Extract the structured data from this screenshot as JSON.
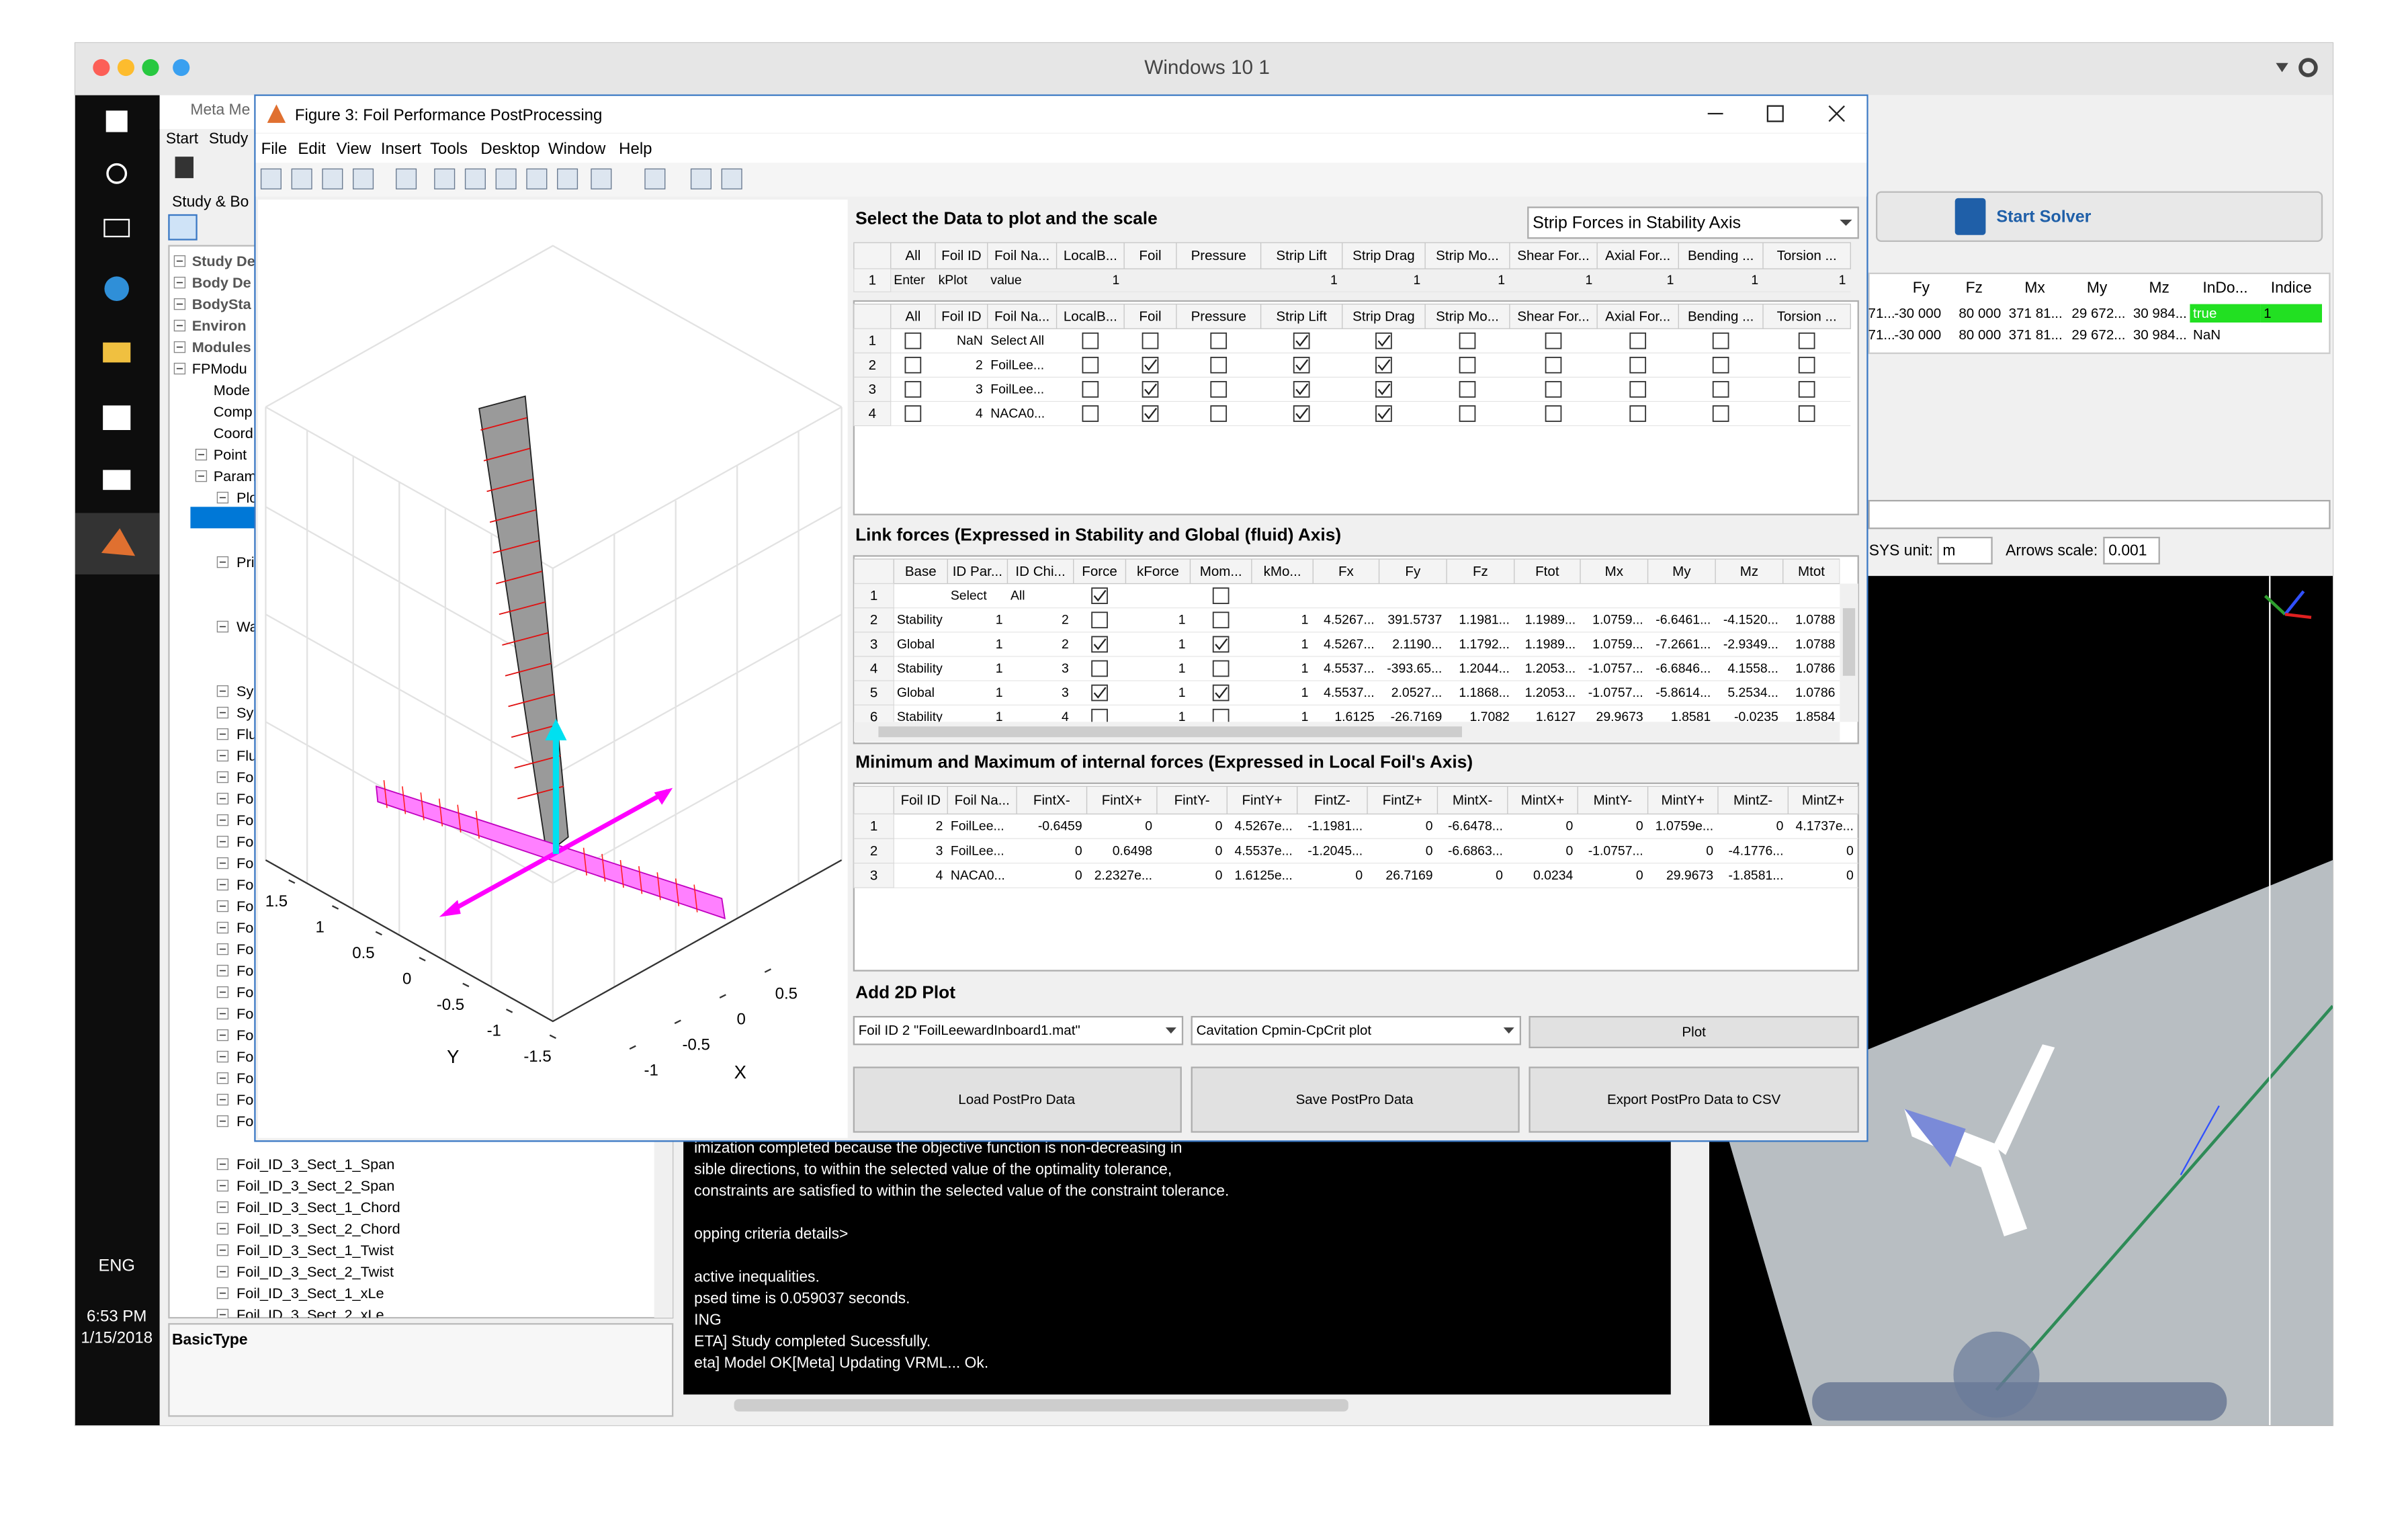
{
  "mac": {
    "title": "Windows 10 1"
  },
  "taskbar": {
    "language": "ENG",
    "time": "6:53 PM",
    "date": "1/15/2018"
  },
  "meta_app": {
    "title": "Meta Me",
    "menu": [
      "Start",
      "Study"
    ],
    "panel_title": "Study & Bo",
    "tree": [
      "Study De",
      "Body De",
      "BodySta",
      "Environ",
      "Modules",
      "FPModu",
      "Mode",
      "Comp",
      "Coord",
      "Point",
      "Param",
      "Plo",
      "Pri",
      "Wa",
      "Sy",
      "Sy",
      "Flu",
      "Flu",
      "Fo",
      "Fo",
      "Fo",
      "Fo",
      "Fo",
      "Fo",
      "Fo",
      "Fo",
      "Fo",
      "Fo",
      "Fo",
      "Fo",
      "Fo",
      "Fo",
      "Fo",
      "Fo",
      "Fo",
      "Foil_ID_3_Sect_1_Span",
      "Foil_ID_3_Sect_2_Span",
      "Foil_ID_3_Sect_1_Chord",
      "Foil_ID_3_Sect_2_Chord",
      "Foil_ID_3_Sect_1_Twist",
      "Foil_ID_3_Sect_2_Twist",
      "Foil_ID_3_Sect_1_xLe",
      "Foil_ID_3_Sect_2_xLe"
    ],
    "property_label": "BasicType",
    "console": [
      "imization completed because the objective function is non-decreasing in",
      "sible directions, to within the selected value of the optimality tolerance,",
      " constraints are satisfied to within the selected value of the constraint tolerance.",
      "opping criteria details>",
      "active inequalities.",
      "psed time is 0.059037 seconds.",
      "ING",
      "ETA] Study completed Sucessfully.",
      "eta] Model OK[Meta] Updating VRML... Ok."
    ],
    "solver_button": "Start Solver",
    "results_table": {
      "columns": [
        "Fy",
        "Fz",
        "Mx",
        "My",
        "Mz",
        "InDo...",
        "Indice"
      ],
      "rows": [
        [
          "71...",
          "-30 000",
          "80 000",
          "371 81...",
          "29 672...",
          "30 984...",
          "true",
          "1"
        ],
        [
          "71...",
          "-30 000",
          "80 000",
          "371 81...",
          "29 672...",
          "30 984...",
          "NaN",
          null
        ]
      ]
    },
    "sys_unit_label": "SYS unit:",
    "sys_unit": "m",
    "arrows_scale_label": "Arrows scale:",
    "arrows_scale": "0.001"
  },
  "figure": {
    "title": "Figure 3: Foil Performance PostProcessing",
    "menu": [
      "File",
      "Edit",
      "View",
      "Insert",
      "Tools",
      "Desktop",
      "Window",
      "Help"
    ],
    "plot3d": {
      "yticks": [
        1.5,
        1,
        0.5,
        0,
        -0.5,
        -1,
        -1.5
      ],
      "xticks": [
        0.5,
        0,
        -0.5,
        -1
      ],
      "ylabel": "Y",
      "xlabel": "X"
    },
    "select_title": "Select the Data to plot and the scale",
    "scale_dropdown": "Strip Forces in Stability Axis",
    "scale_table": {
      "columns": [
        "All",
        "Foil ID",
        "Foil Na...",
        "LocalB...",
        "Foil",
        "Pressure",
        "Strip Lift",
        "Strip Drag",
        "Strip Mo...",
        "Shear For...",
        "Axial For...",
        "Bending ...",
        "Torsion ..."
      ],
      "row_numbers": [
        1
      ],
      "rows": [
        [
          "Enter",
          "kPlot",
          "value",
          "1",
          null,
          null,
          "1",
          "1",
          "1",
          "1",
          "1",
          "1",
          "1"
        ]
      ]
    },
    "selection_table": {
      "columns": [
        "All",
        "Foil ID",
        "Foil Na...",
        "LocalB...",
        "Foil",
        "Pressure",
        "Strip Lift",
        "Strip Drag",
        "Strip Mo...",
        "Shear For...",
        "Axial For...",
        "Bending ...",
        "Torsion ..."
      ],
      "row_numbers": [
        1,
        2,
        3,
        4
      ],
      "rows": [
        [
          false,
          "NaN",
          "Select All",
          false,
          false,
          false,
          true,
          true,
          false,
          false,
          false,
          false,
          false
        ],
        [
          false,
          "2",
          "FoilLee...",
          false,
          true,
          false,
          true,
          true,
          false,
          false,
          false,
          false,
          false
        ],
        [
          false,
          "3",
          "FoilLee...",
          false,
          true,
          false,
          true,
          true,
          false,
          false,
          false,
          false,
          false
        ],
        [
          false,
          "4",
          "NACA0...",
          false,
          true,
          false,
          true,
          true,
          false,
          false,
          false,
          false,
          false
        ]
      ]
    },
    "link_title": "Link forces (Expressed in Stability and Global (fluid) Axis)",
    "link_table": {
      "columns": [
        "Base",
        "ID Par...",
        "ID Chi...",
        "Force",
        "kForce",
        "Mom...",
        "kMo...",
        "Fx",
        "Fy",
        "Fz",
        "Ftot",
        "Mx",
        "My",
        "Mz",
        "Mtot"
      ],
      "row_numbers": [
        1,
        2,
        3,
        4,
        5,
        6
      ],
      "rows": [
        [
          null,
          "Select",
          "All",
          true,
          null,
          false,
          null,
          null,
          null,
          null,
          null,
          null,
          null,
          null,
          null
        ],
        [
          "Stability",
          "1",
          "2",
          false,
          "1",
          false,
          "1",
          "4.5267...",
          "391.5737",
          "1.1981...",
          "1.1989...",
          "1.0759...",
          "-6.6461...",
          "-4.1520...",
          "1.0788"
        ],
        [
          "Global",
          "1",
          "2",
          true,
          "1",
          true,
          "1",
          "4.5267...",
          "2.1190...",
          "1.1792...",
          "1.1989...",
          "1.0759...",
          "-7.2661...",
          "-2.9349...",
          "1.0788"
        ],
        [
          "Stability",
          "1",
          "3",
          false,
          "1",
          false,
          "1",
          "4.5537...",
          "-393.65...",
          "1.2044...",
          "1.2053...",
          "-1.0757...",
          "-6.6846...",
          "4.1558...",
          "1.0786"
        ],
        [
          "Global",
          "1",
          "3",
          true,
          "1",
          true,
          "1",
          "4.5537...",
          "2.0527...",
          "1.1868...",
          "1.2053...",
          "-1.0757...",
          "-5.8614...",
          "5.2534...",
          "1.0786"
        ],
        [
          "Stability",
          "1",
          "4",
          false,
          "1",
          false,
          "1",
          "1.6125",
          "-26.7169",
          "1.7082",
          "1.6127",
          "29.9673",
          "1.8581",
          "-0.0235",
          "1.8584"
        ]
      ]
    },
    "minmax_title": "Minimum and Maximum of internal forces (Expressed in Local Foil's Axis)",
    "minmax_table": {
      "columns": [
        "Foil ID",
        "Foil Na...",
        "FintX-",
        "FintX+",
        "FintY-",
        "FintY+",
        "FintZ-",
        "FintZ+",
        "MintX-",
        "MintX+",
        "MintY-",
        "MintY+",
        "MintZ-",
        "MintZ+"
      ],
      "row_numbers": [
        1,
        2,
        3
      ],
      "rows": [
        [
          "2",
          "FoilLee...",
          "-0.6459",
          "0",
          "0",
          "4.5267e...",
          "-1.1981...",
          "0",
          "-6.6478...",
          "0",
          "0",
          "1.0759e...",
          "0",
          "4.1737e..."
        ],
        [
          "3",
          "FoilLee...",
          "0",
          "0.6498",
          "0",
          "4.5537e...",
          "-1.2045...",
          "0",
          "-6.6863...",
          "0",
          "-1.0757...",
          "0",
          "-4.1776...",
          "0"
        ],
        [
          "4",
          "NACA0...",
          "0",
          "2.2327e...",
          "0",
          "1.6125e...",
          "0",
          "26.7169",
          "0",
          "0.0234",
          "0",
          "29.9673",
          "-1.8581...",
          "0"
        ]
      ]
    },
    "plot2d_title": "Add 2D Plot",
    "foil_dropdown": "Foil ID 2 \"FoilLeewardInboard1.mat\"",
    "plot_dropdown": "Cavitation Cpmin-CpCrit plot",
    "plot_button": "Plot",
    "buttons": [
      "Load PostPro Data",
      "Save PostPro Data",
      "Export PostPro Data to CSV"
    ]
  }
}
